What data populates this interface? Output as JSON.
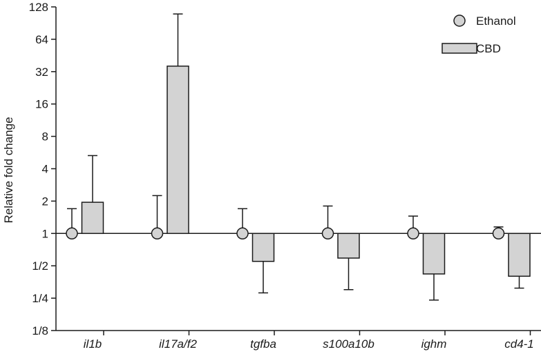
{
  "chart_data": {
    "type": "bar",
    "yscale": "log2",
    "ylabel": "Relative fold change",
    "xlabel": "",
    "ylim": [
      0.125,
      128
    ],
    "yticks": [
      {
        "value": 128,
        "label": "128"
      },
      {
        "value": 64,
        "label": "64"
      },
      {
        "value": 32,
        "label": "32"
      },
      {
        "value": 16,
        "label": "16"
      },
      {
        "value": 8,
        "label": "8"
      },
      {
        "value": 4,
        "label": "4"
      },
      {
        "value": 2,
        "label": "2"
      },
      {
        "value": 1,
        "label": "1"
      },
      {
        "value": 0.5,
        "label": "1/2"
      },
      {
        "value": 0.25,
        "label": "1/4"
      },
      {
        "value": 0.125,
        "label": "1/8"
      }
    ],
    "categories": [
      "il1b",
      "il17a/f2",
      "tgfba",
      "s100a10b",
      "ighm",
      "cd4-1"
    ],
    "series": [
      {
        "name": "Ethanol",
        "kind": "point",
        "values": [
          1,
          1,
          1,
          1,
          1,
          1
        ],
        "error_upper": [
          1.7,
          2.25,
          1.7,
          1.8,
          1.45,
          1.15
        ]
      },
      {
        "name": "CBD",
        "kind": "bar",
        "values": [
          1.95,
          36,
          0.55,
          0.59,
          0.42,
          0.4
        ],
        "error_lower": [
          1.95,
          36,
          0.28,
          0.3,
          0.24,
          0.31
        ],
        "error_upper": [
          5.3,
          110,
          0.55,
          0.59,
          0.42,
          0.4
        ]
      }
    ],
    "legend": {
      "position": "top-right",
      "entries": [
        {
          "label": "Ethanol",
          "marker": "circle"
        },
        {
          "label": "CBD",
          "marker": "bar"
        }
      ]
    },
    "colors": {
      "bar_fill": "#d3d3d3",
      "marker_fill": "#d3d3d3",
      "stroke": "#1a1a1a"
    }
  }
}
